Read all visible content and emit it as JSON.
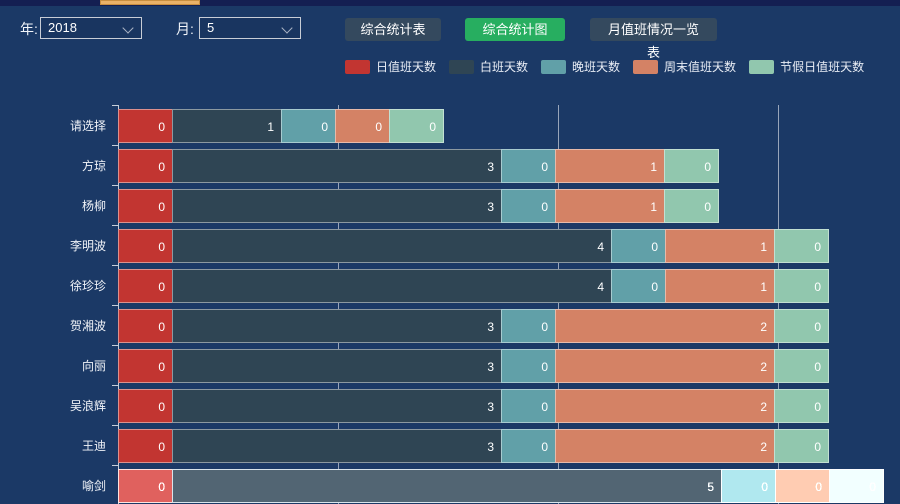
{
  "colors": {
    "background": "#1b3966",
    "top_scrollbar_track": "#141f52",
    "top_scrollbar_thumb": "#eab268",
    "button_default": "#34495e",
    "button_active": "#27ae60",
    "grid_line": "rgba(255,255,255,0.55)"
  },
  "toolbar": {
    "year_label": "年:",
    "year_value": "2018",
    "month_label": "月:",
    "month_value": "5",
    "buttons": [
      {
        "label": "综合统计表",
        "active": false
      },
      {
        "label": "综合统计图",
        "active": true
      },
      {
        "label": "月值班情况一览表",
        "active": false
      }
    ]
  },
  "chart_data": {
    "type": "bar",
    "orientation": "horizontal",
    "stacked": true,
    "categories": [
      "请选择",
      "方琼",
      "杨柳",
      "李明波",
      "徐珍珍",
      "贺湘波",
      "向丽",
      "吴浪辉",
      "王迪",
      "喻剑"
    ],
    "series": [
      {
        "name": "日值班天数",
        "color": "#c23531",
        "values": [
          0,
          0,
          0,
          0,
          0,
          0,
          0,
          0,
          0,
          0
        ]
      },
      {
        "name": "白班天数",
        "color": "#2f4554",
        "values": [
          1,
          3,
          3,
          4,
          4,
          3,
          3,
          3,
          3,
          5
        ]
      },
      {
        "name": "晚班天数",
        "color": "#61a0a8",
        "values": [
          0,
          0,
          0,
          0,
          0,
          0,
          0,
          0,
          0,
          0
        ]
      },
      {
        "name": "周末值班天数",
        "color": "#d48265",
        "values": [
          0,
          1,
          1,
          1,
          1,
          2,
          2,
          2,
          2,
          0
        ]
      },
      {
        "name": "节假日值班天数",
        "color": "#91c7ae",
        "values": [
          0,
          0,
          0,
          0,
          0,
          0,
          0,
          0,
          0,
          0
        ]
      }
    ],
    "value_labels": "inside-right, every segment shows its value (zeros shown as 0 on half-unit stubs)",
    "xlim": [
      0,
      8
    ],
    "gridlines": [
      2,
      4,
      6
    ],
    "zero_value_render_units": 0.5,
    "legend_position": "top-center",
    "legend": [
      "日值班天数",
      "白班天数",
      "晚班天数",
      "周末值班天数",
      "节假日值班天数"
    ],
    "highlighted_category": "喻剑",
    "title": "",
    "xlabel": "",
    "ylabel": ""
  }
}
